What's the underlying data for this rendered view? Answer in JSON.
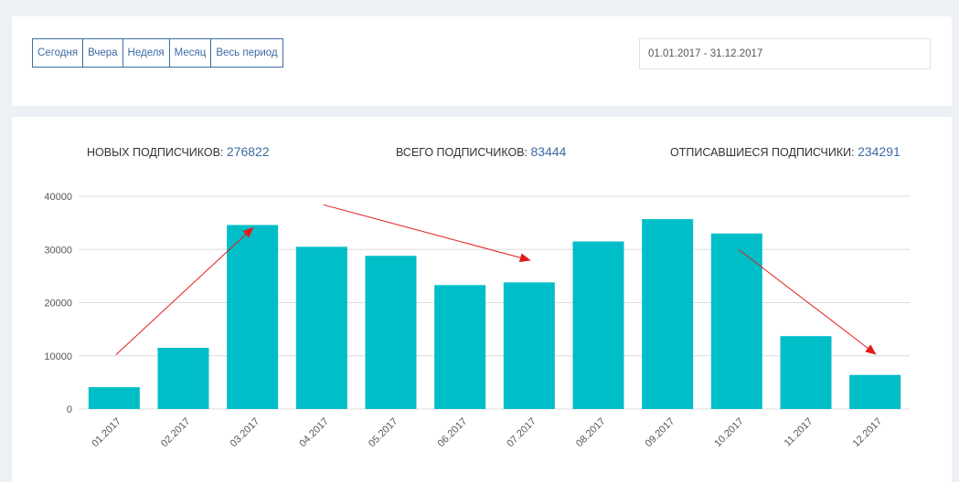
{
  "period_filter": {
    "buttons": [
      "Сегодня",
      "Вчера",
      "Неделя",
      "Месяц",
      "Весь период"
    ]
  },
  "date_range": {
    "value": "01.01.2017 - 31.12.2017"
  },
  "stats": {
    "new": {
      "label": "НОВЫХ ПОДПИСЧИКОВ: ",
      "value": "276822"
    },
    "total": {
      "label": "ВСЕГО ПОДПИСЧИКОВ: ",
      "value": "83444"
    },
    "unsubscribed": {
      "label": "ОТПИСАВШИЕСЯ ПОДПИСЧИКИ: ",
      "value": "234291"
    }
  },
  "colors": {
    "bar": "#00bec8",
    "accent": "#3c6aa6",
    "arrow": "#e31b1b",
    "grid": "#dcdcdc"
  },
  "chart_data": {
    "type": "bar",
    "categories": [
      "01.2017",
      "02.2017",
      "03.2017",
      "04.2017",
      "05.2017",
      "06.2017",
      "07.2017",
      "08.2017",
      "09.2017",
      "10.2017",
      "11.2017",
      "12.2017"
    ],
    "values": [
      4100,
      11500,
      34600,
      30500,
      28800,
      23300,
      23800,
      31500,
      35700,
      33000,
      13700,
      6400
    ],
    "y_ticks": [
      0,
      10000,
      20000,
      30000,
      40000
    ],
    "ylim": [
      0,
      40000
    ],
    "grid": true,
    "annotations": [
      {
        "type": "arrow",
        "from": {
          "x": "01.2017",
          "y": 10200
        },
        "to": {
          "x": "03.2017",
          "y": 34000
        },
        "color": "#e31b1b"
      },
      {
        "type": "arrow",
        "from": {
          "x": "04.2017",
          "y": 38400
        },
        "to": {
          "x": "07.2017",
          "y": 28000
        },
        "color": "#e31b1b"
      },
      {
        "type": "arrow",
        "from": {
          "x": "10.2017",
          "y": 30000
        },
        "to": {
          "x": "12.2017",
          "y": 10400
        },
        "color": "#e31b1b"
      }
    ]
  }
}
